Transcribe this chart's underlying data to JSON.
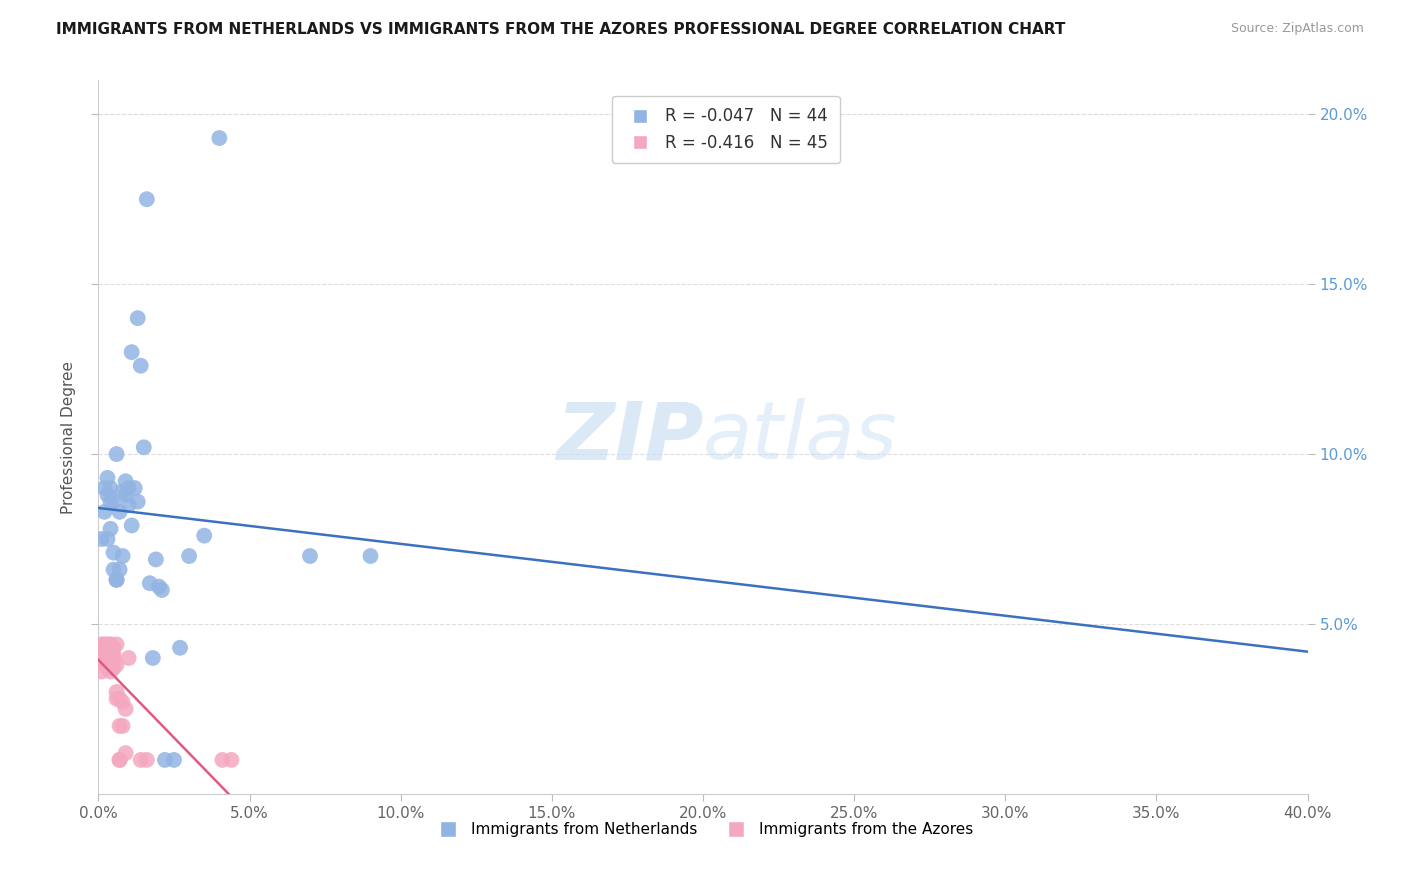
{
  "title": "IMMIGRANTS FROM NETHERLANDS VS IMMIGRANTS FROM THE AZORES PROFESSIONAL DEGREE CORRELATION CHART",
  "source": "Source: ZipAtlas.com",
  "ylabel": "Professional Degree",
  "xlim": [
    0.0,
    0.4
  ],
  "ylim": [
    0.0,
    0.21
  ],
  "xticks": [
    0.0,
    0.05,
    0.1,
    0.15,
    0.2,
    0.25,
    0.3,
    0.35,
    0.4
  ],
  "yticks": [
    0.05,
    0.1,
    0.15,
    0.2
  ],
  "netherlands_R": -0.047,
  "netherlands_N": 44,
  "azores_R": -0.416,
  "azores_N": 45,
  "netherlands_color": "#92b4e3",
  "azores_color": "#f4a8c0",
  "netherlands_line_color": "#3a72c0",
  "azores_line_color": "#e05a80",
  "right_axis_color": "#5b9bd5",
  "watermark_color": "#cce0f5",
  "netherlands_x": [
    0.001,
    0.002,
    0.002,
    0.003,
    0.003,
    0.003,
    0.004,
    0.004,
    0.004,
    0.005,
    0.005,
    0.005,
    0.006,
    0.006,
    0.006,
    0.007,
    0.007,
    0.008,
    0.008,
    0.009,
    0.009,
    0.01,
    0.01,
    0.011,
    0.011,
    0.012,
    0.013,
    0.013,
    0.014,
    0.015,
    0.016,
    0.017,
    0.018,
    0.019,
    0.02,
    0.021,
    0.022,
    0.025,
    0.027,
    0.03,
    0.035,
    0.04,
    0.07,
    0.09
  ],
  "netherlands_y": [
    0.075,
    0.09,
    0.083,
    0.093,
    0.088,
    0.075,
    0.078,
    0.086,
    0.09,
    0.086,
    0.071,
    0.066,
    0.063,
    0.1,
    0.063,
    0.083,
    0.066,
    0.07,
    0.089,
    0.092,
    0.088,
    0.09,
    0.085,
    0.079,
    0.13,
    0.09,
    0.086,
    0.14,
    0.126,
    0.102,
    0.175,
    0.062,
    0.04,
    0.069,
    0.061,
    0.06,
    0.01,
    0.01,
    0.043,
    0.07,
    0.076,
    0.193,
    0.07,
    0.07
  ],
  "azores_x": [
    0.001,
    0.001,
    0.001,
    0.001,
    0.002,
    0.002,
    0.002,
    0.002,
    0.002,
    0.002,
    0.002,
    0.003,
    0.003,
    0.003,
    0.003,
    0.003,
    0.003,
    0.003,
    0.004,
    0.004,
    0.004,
    0.004,
    0.004,
    0.005,
    0.005,
    0.005,
    0.005,
    0.005,
    0.006,
    0.006,
    0.006,
    0.006,
    0.007,
    0.007,
    0.007,
    0.007,
    0.008,
    0.008,
    0.009,
    0.009,
    0.01,
    0.014,
    0.016,
    0.041,
    0.044
  ],
  "azores_y": [
    0.04,
    0.044,
    0.04,
    0.036,
    0.04,
    0.042,
    0.044,
    0.042,
    0.04,
    0.038,
    0.043,
    0.041,
    0.039,
    0.037,
    0.04,
    0.042,
    0.044,
    0.04,
    0.044,
    0.04,
    0.036,
    0.042,
    0.038,
    0.043,
    0.041,
    0.039,
    0.037,
    0.04,
    0.038,
    0.044,
    0.03,
    0.028,
    0.01,
    0.01,
    0.028,
    0.02,
    0.027,
    0.02,
    0.025,
    0.012,
    0.04,
    0.01,
    0.01,
    0.01,
    0.01
  ]
}
